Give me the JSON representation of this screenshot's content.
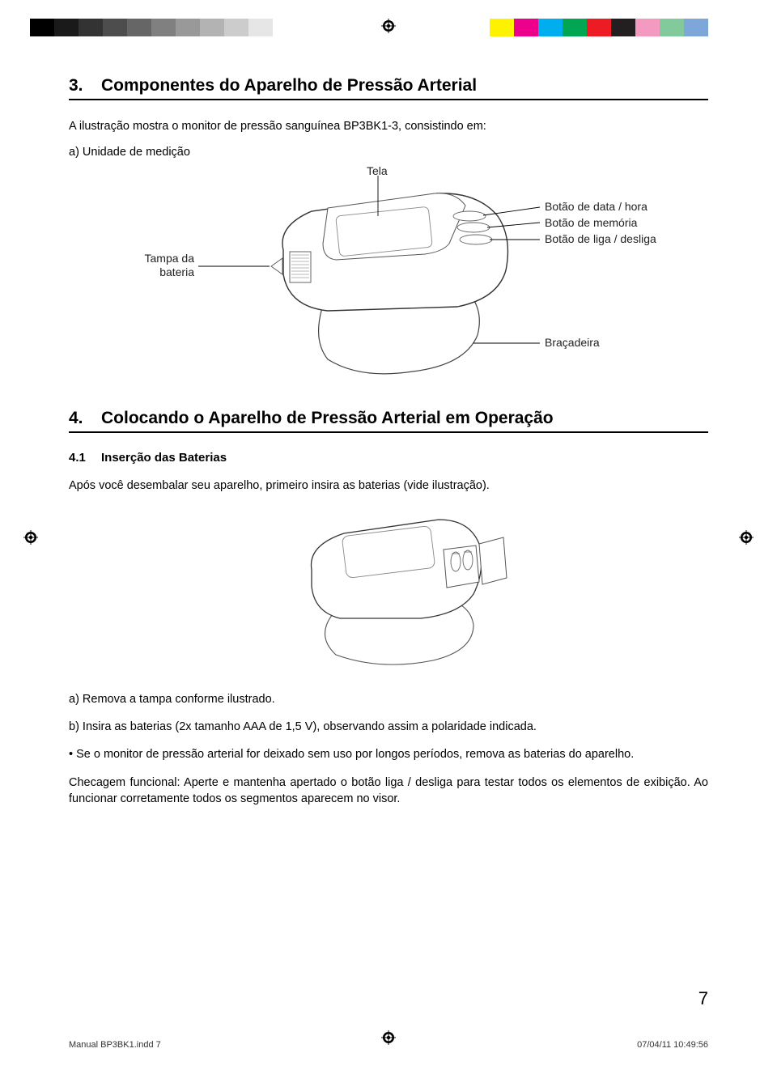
{
  "printbar": {
    "left_colors": [
      "#000000",
      "#1a1a1a",
      "#333333",
      "#4d4d4d",
      "#666666",
      "#808080",
      "#999999",
      "#b3b3b3",
      "#cccccc",
      "#e6e6e6"
    ],
    "right_colors": [
      "#fff200",
      "#ec008c",
      "#00aeef",
      "#00a651",
      "#ed1c24",
      "#231f20",
      "#f49ac1",
      "#82ca9c",
      "#7da7d9",
      "#fff"
    ]
  },
  "section3": {
    "number": "3.",
    "title": "Componentes do Aparelho de Pressão Arterial",
    "intro": "A ilustração mostra o monitor de pressão sanguínea BP3BK1-3, consistindo em:",
    "sub_a": "a) Unidade de medição",
    "labels": {
      "tela": "Tela",
      "data_hora": "Botão de data / hora",
      "memoria": "Botão de memória",
      "liga": "Botão de liga / desliga",
      "tampa": "Tampa da bateria",
      "tampa2": "",
      "bracadeira": "Braçadeira"
    }
  },
  "section4": {
    "number": "4.",
    "title": "Colocando o Aparelho de Pressão Arterial em Operação",
    "sub_number": "4.1",
    "sub_title": "Inserção das Baterias",
    "p1": "Após você desembalar seu aparelho, primeiro insira as baterias (vide ilustração).",
    "la": "a)   Remova a tampa conforme ilustrado.",
    "lb": "b)   Insira as baterias (2x tamanho AAA de 1,5 V), observando assim a polaridade indicada.",
    "bullet": "• Se o monitor de pressão arterial for deixado sem uso por longos períodos, remova as baterias do aparelho.",
    "check": "Checagem funcional: Aperte e mantenha apertado o botão liga / desliga para testar todos os elementos de exibição. Ao funcionar corretamente todos os segmentos aparecem no visor."
  },
  "page_number": "7",
  "footer": {
    "left": "Manual BP3BK1.indd   7",
    "right": "07/04/11   10:49:56"
  }
}
